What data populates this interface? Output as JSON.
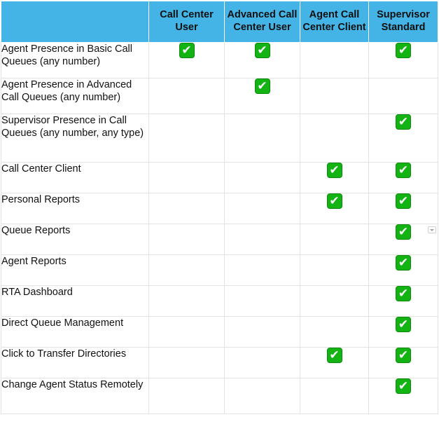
{
  "table": {
    "columns": [
      "",
      "Call Center User",
      "Advanced Call Center User",
      "Agent Call Center Client",
      "Supervisor Standard"
    ],
    "check_icon": "white-check-mark-in-green-box",
    "accent_header_color": "#44b4e6",
    "check_color": "#14b314",
    "rows": [
      {
        "feature": "Agent Presence in Basic Call Queues (any number)",
        "checks": [
          true,
          true,
          false,
          true
        ]
      },
      {
        "feature": "Agent Presence in Advanced Call Queues (any number)",
        "checks": [
          false,
          true,
          false,
          false
        ]
      },
      {
        "feature": "Supervisor Presence in Call Queues (any number, any type)",
        "checks": [
          false,
          false,
          false,
          true
        ]
      },
      {
        "feature": "Call Center Client",
        "checks": [
          false,
          false,
          true,
          true
        ]
      },
      {
        "feature": "Personal Reports",
        "checks": [
          false,
          false,
          true,
          true
        ]
      },
      {
        "feature": "Queue Reports",
        "checks": [
          false,
          false,
          false,
          true
        ]
      },
      {
        "feature": "Agent Reports",
        "checks": [
          false,
          false,
          false,
          true
        ]
      },
      {
        "feature": "RTA Dashboard",
        "checks": [
          false,
          false,
          false,
          true
        ]
      },
      {
        "feature": "Direct Queue Management",
        "checks": [
          false,
          false,
          false,
          true
        ]
      },
      {
        "feature": "Click to Transfer Directories",
        "checks": [
          false,
          false,
          true,
          true
        ]
      },
      {
        "feature": "Change Agent Status Remotely",
        "checks": [
          false,
          false,
          false,
          true
        ]
      }
    ]
  }
}
